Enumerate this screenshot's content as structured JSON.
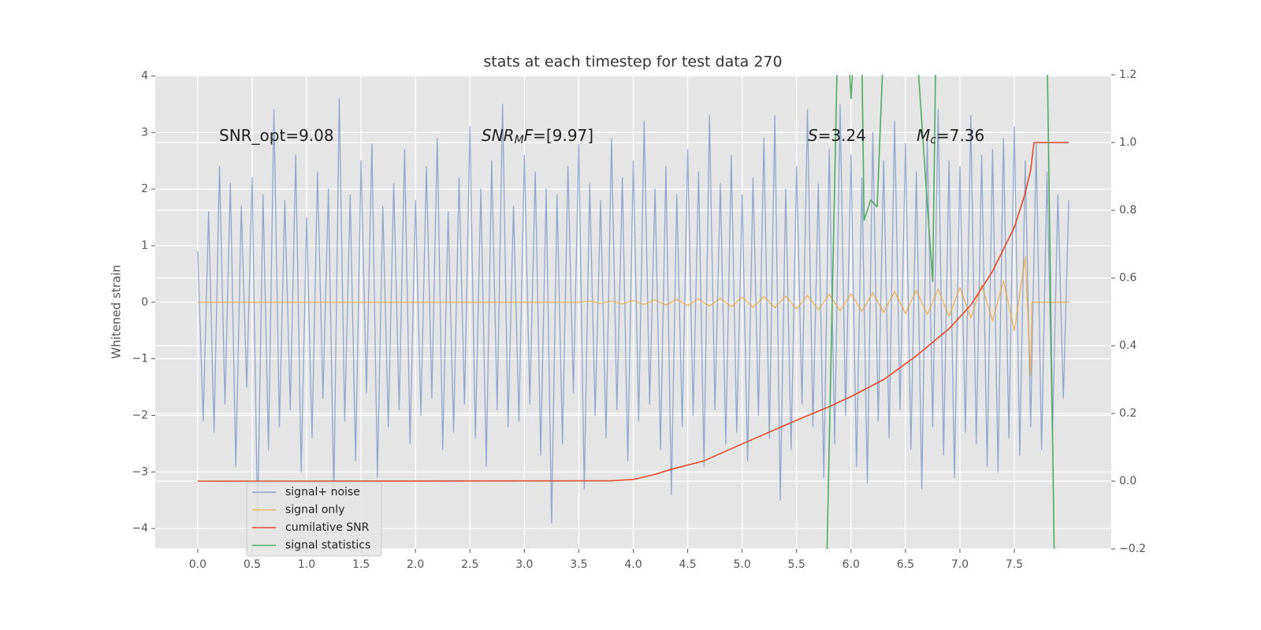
{
  "chart_data": {
    "type": "line",
    "title": "stats at each timestep for test data 270",
    "ylabel": "Whitened strain",
    "xlim": [
      -0.39,
      8.39
    ],
    "ylim": [
      -4.36,
      4.02
    ],
    "y2lim": [
      -0.2,
      1.2
    ],
    "xticks": [
      {
        "value": 0,
        "label": "0.0"
      },
      0.5,
      {
        "value": 1,
        "label": "1.0"
      },
      1.5,
      {
        "value": 2,
        "label": "2.0"
      },
      2.5,
      {
        "value": 3,
        "label": "3.0"
      },
      3.5,
      {
        "value": 4,
        "label": "4.0"
      },
      4.5,
      {
        "value": 5,
        "label": "5.0"
      },
      5.5,
      {
        "value": 6,
        "label": "6.0"
      },
      6.5,
      {
        "value": 7,
        "label": "7.0"
      },
      7.5
    ],
    "yticks": [
      {
        "value": -4,
        "label": "−4"
      },
      {
        "value": -3,
        "label": "−3"
      },
      {
        "value": -2,
        "label": "−2"
      },
      {
        "value": -1,
        "label": "−1"
      },
      0,
      1,
      2,
      3,
      4
    ],
    "y2ticks": [
      {
        "value": -0.2,
        "label": "−0.2"
      },
      {
        "value": 0,
        "label": "0.0"
      },
      0.2,
      0.4,
      0.6,
      0.8,
      {
        "value": 1,
        "label": "1.0"
      },
      1.2
    ],
    "grid": true,
    "legend": "lower left",
    "annotations": [
      {
        "parts": [
          {
            "text": "SNR_opt=9.08"
          }
        ]
      },
      {
        "parts": [
          {
            "text": "SNR",
            "italic": true
          },
          {
            "text": "M",
            "italic": true,
            "sub": true
          },
          {
            "text": "F",
            "italic": true
          },
          {
            "text": "=[9.97]"
          }
        ]
      },
      {
        "parts": [
          {
            "text": "S",
            "italic": true
          },
          {
            "text": "=3.24"
          }
        ]
      },
      {
        "parts": [
          {
            "text": "M",
            "italic": true
          },
          {
            "text": "c",
            "italic": true,
            "sub": true
          },
          {
            "text": "=7.36"
          }
        ]
      }
    ],
    "series": [
      {
        "name": "signal+ noise",
        "color": "#4c72b0",
        "x": [
          0,
          0.05,
          0.1,
          0.15,
          0.2,
          0.25,
          0.3,
          0.35,
          0.4,
          0.45,
          0.5,
          0.55,
          0.6,
          0.65,
          0.7,
          0.75,
          0.8,
          0.85,
          0.9,
          0.95,
          1,
          1.05,
          1.1,
          1.15,
          1.2,
          1.25,
          1.3,
          1.35,
          1.4,
          1.45,
          1.5,
          1.55,
          1.6,
          1.65,
          1.7,
          1.75,
          1.8,
          1.85,
          1.9,
          1.95,
          2,
          2.05,
          2.1,
          2.15,
          2.2,
          2.25,
          2.3,
          2.35,
          2.4,
          2.45,
          2.5,
          2.55,
          2.6,
          2.65,
          2.7,
          2.75,
          2.8,
          2.85,
          2.9,
          2.95,
          3,
          3.05,
          3.1,
          3.15,
          3.2,
          3.25,
          3.3,
          3.35,
          3.4,
          3.45,
          3.5,
          3.55,
          3.6,
          3.65,
          3.7,
          3.75,
          3.8,
          3.85,
          3.9,
          3.95,
          4,
          4.05,
          4.1,
          4.15,
          4.2,
          4.25,
          4.3,
          4.35,
          4.4,
          4.45,
          4.5,
          4.55,
          4.6,
          4.65,
          4.7,
          4.75,
          4.8,
          4.85,
          4.9,
          4.95,
          5,
          5.05,
          5.1,
          5.15,
          5.2,
          5.25,
          5.3,
          5.35,
          5.4,
          5.45,
          5.5,
          5.55,
          5.6,
          5.65,
          5.7,
          5.75,
          5.8,
          5.85,
          5.9,
          5.95,
          6,
          6.05,
          6.1,
          6.15,
          6.2,
          6.25,
          6.3,
          6.35,
          6.4,
          6.45,
          6.5,
          6.55,
          6.6,
          6.65,
          6.7,
          6.75,
          6.8,
          6.85,
          6.9,
          6.95,
          7,
          7.05,
          7.1,
          7.15,
          7.2,
          7.25,
          7.3,
          7.35,
          7.4,
          7.45,
          7.5,
          7.55,
          7.6,
          7.65,
          7.7,
          7.75,
          7.8,
          7.85,
          7.9,
          7.95,
          8
        ],
        "values": [
          0.9,
          -2.1,
          1.6,
          -2.3,
          2.4,
          -1.8,
          2.1,
          -2.9,
          1.7,
          -1.5,
          2.2,
          -3.9,
          1.9,
          -2.6,
          3.4,
          -2.2,
          1.8,
          -1.9,
          2.6,
          -3.0,
          1.5,
          -2.4,
          2.3,
          -1.7,
          2.0,
          -3.4,
          3.6,
          -2.1,
          1.9,
          -2.8,
          2.5,
          -1.6,
          2.8,
          -3.1,
          1.7,
          -2.2,
          2.1,
          -1.9,
          2.7,
          -2.5,
          1.8,
          -2.0,
          2.4,
          -1.7,
          2.9,
          -2.6,
          1.6,
          -2.3,
          2.2,
          -1.8,
          3.1,
          -2.4,
          2.0,
          -2.9,
          2.5,
          -1.9,
          3.5,
          -2.2,
          1.7,
          -2.1,
          2.6,
          -1.8,
          2.3,
          -2.7,
          2.0,
          -3.9,
          1.9,
          -2.5,
          2.4,
          -1.6,
          2.8,
          -3.3,
          2.1,
          -2.0,
          1.8,
          -2.4,
          2.9,
          -1.9,
          2.2,
          -2.8,
          2.5,
          -2.1,
          3.2,
          -1.8,
          2.0,
          -2.6,
          2.4,
          -3.4,
          1.9,
          -2.2,
          2.7,
          -2.0,
          2.3,
          -2.9,
          3.3,
          -1.9,
          2.1,
          -2.5,
          2.6,
          -2.3,
          1.9,
          -2.8,
          2.2,
          -2.0,
          2.9,
          -2.4,
          3.3,
          -3.5,
          2.0,
          -2.6,
          2.4,
          -1.8,
          3.4,
          -2.2,
          2.1,
          -3.1,
          2.7,
          -2.5,
          3.5,
          -2.0,
          2.6,
          -2.9,
          2.2,
          -3.2,
          3.0,
          -2.1,
          2.5,
          -2.4,
          3.2,
          -1.9,
          2.8,
          -2.6,
          2.3,
          -3.3,
          2.9,
          -2.2,
          3.4,
          -2.7,
          2.5,
          -3.1,
          2.4,
          -2.3,
          3.3,
          -2.5,
          2.6,
          -2.9,
          2.7,
          -3.0,
          2.9,
          -2.4,
          3.1,
          -2.7,
          2.5,
          -2.2,
          2.8,
          -2.6,
          2.3,
          -2.4,
          1.9,
          -1.7,
          1.8
        ]
      },
      {
        "name": "signal only",
        "color": "#e8a33d",
        "x": [
          0,
          3.5,
          3.6,
          3.7,
          3.8,
          3.9,
          4,
          4.1,
          4.2,
          4.3,
          4.4,
          4.5,
          4.6,
          4.7,
          4.8,
          4.9,
          5,
          5.1,
          5.2,
          5.3,
          5.4,
          5.5,
          5.6,
          5.7,
          5.8,
          5.9,
          6,
          6.1,
          6.2,
          6.3,
          6.4,
          6.5,
          6.6,
          6.7,
          6.8,
          6.9,
          7,
          7.1,
          7.2,
          7.3,
          7.4,
          7.5,
          7.6,
          7.65,
          7.66,
          8
        ],
        "values": [
          0,
          0,
          0.02,
          -0.02,
          0.02,
          -0.03,
          0.03,
          -0.04,
          0.04,
          -0.05,
          0.05,
          -0.06,
          0.06,
          -0.07,
          0.07,
          -0.08,
          0.09,
          -0.09,
          0.1,
          -0.1,
          0.11,
          -0.12,
          0.12,
          -0.13,
          0.14,
          -0.15,
          0.15,
          -0.16,
          0.17,
          -0.18,
          0.19,
          -0.2,
          0.21,
          -0.22,
          0.23,
          -0.25,
          0.26,
          -0.28,
          0.3,
          -0.33,
          0.38,
          -0.5,
          0.8,
          -1.3,
          0,
          0
        ]
      },
      {
        "name": "cumilative SNR",
        "color": "#e24a33",
        "axis": "y2",
        "x": [
          0,
          3.8,
          4,
          4.2,
          4.35,
          4.65,
          5,
          5.5,
          5.8,
          6,
          6.3,
          6.6,
          6.9,
          7.1,
          7.3,
          7.5,
          7.6,
          7.65,
          7.68,
          8
        ],
        "values": [
          0,
          0.001,
          0.005,
          0.02,
          0.035,
          0.06,
          0.11,
          0.18,
          0.22,
          0.25,
          0.3,
          0.37,
          0.45,
          0.52,
          0.62,
          0.75,
          0.85,
          0.92,
          1.0,
          1.0
        ]
      },
      {
        "name": "signal statistics",
        "color": "#55a868",
        "axis": "y2",
        "x": [
          5.78,
          5.88,
          5.98,
          6.0,
          6.03,
          6.1,
          6.12,
          6.18,
          6.24,
          6.3,
          6.6,
          6.7,
          6.75,
          6.78,
          7.8,
          7.87
        ],
        "values": [
          -0.2,
          1.35,
          1.25,
          1.13,
          1.3,
          1.25,
          0.77,
          0.83,
          0.81,
          1.3,
          1.3,
          0.82,
          0.59,
          1.3,
          1.3,
          -0.3
        ]
      }
    ]
  }
}
